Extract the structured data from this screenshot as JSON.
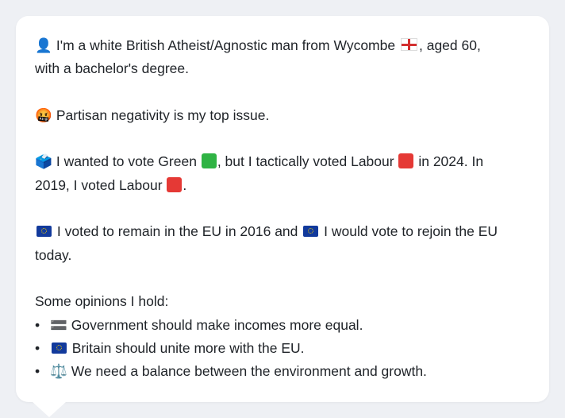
{
  "profile": {
    "identity_icon": "👤",
    "identity_text_1": "I'm a white British Atheist/Agnostic man from Wycombe",
    "identity_flag": "england-flag-icon",
    "identity_text_2": ", aged 60,",
    "identity_text_3": "with a bachelor's degree.",
    "issue_icon": "🤬",
    "issue_text": "Partisan negativity is my top issue.",
    "vote_icon": "🗳️",
    "vote_text_1": "I wanted to vote Green",
    "vote_text_2": ", but I tactically voted Labour",
    "vote_text_3": "in 2024. In",
    "vote_text_4": "2019, I voted Labour",
    "vote_text_5": ".",
    "eu_text_1": "I voted to remain in the EU in 2016 and",
    "eu_text_2": "I would vote to rejoin the EU",
    "eu_text_3": "today.",
    "opinions_heading": "Some opinions I hold:",
    "opinions": [
      {
        "icon": "🟰",
        "text": "Government should make incomes more equal."
      },
      {
        "icon": "eu-flag-icon",
        "text": "Britain should unite more with the EU."
      },
      {
        "icon": "⚖️",
        "text": "We need a balance between the environment and growth."
      }
    ],
    "bullet": "•"
  },
  "colors": {
    "green": "#2fb344",
    "labour_red": "#e53935",
    "text": "#1f2328",
    "background": "#eef0f4",
    "card": "#ffffff"
  }
}
